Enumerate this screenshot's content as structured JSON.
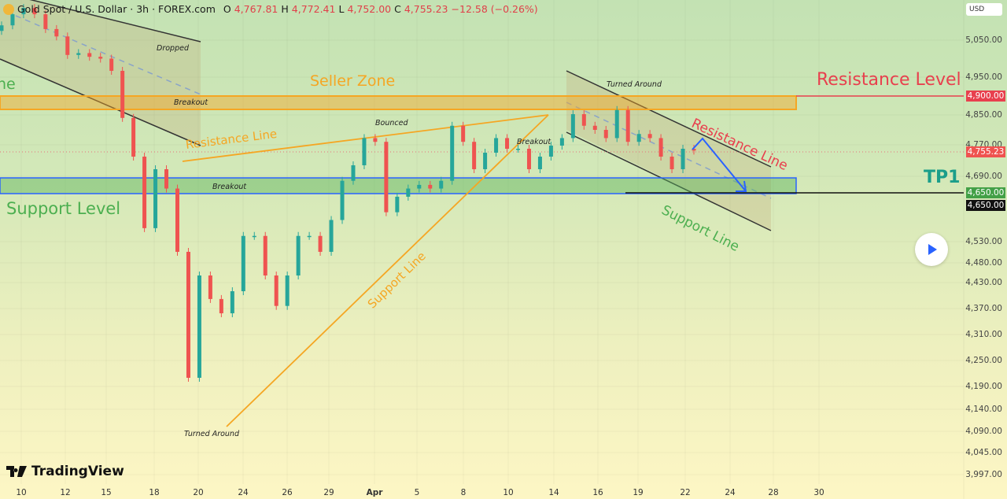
{
  "header": {
    "symbol": "Gold Spot / U.S. Dollar · 3h · FOREX.com",
    "o_label": "O",
    "o": "4,767.81",
    "h_label": "H",
    "h": "4,772.41",
    "l_label": "L",
    "l": "4,752.00",
    "c_label": "C",
    "c": "4,755.23",
    "change": "−12.58 (−0.26%)"
  },
  "currency": "USD",
  "branding": "TradingView",
  "colors": {
    "up": "#26a69a",
    "down": "#ef5350",
    "seller_zone": "#f5a623",
    "support_zone": "#2962ff",
    "resistance": "#e8404e",
    "support_text": "#4caf50",
    "tp": "#1b9e8a"
  },
  "annotations": {
    "seller_zone": "Seller Zone",
    "resistance_level": "Resistance Level",
    "support_level": "Support Level",
    "tp1": "TP1",
    "resistance_line_left": "Resistance Line",
    "support_line_left": "Support Line",
    "resistance_line_right": "Resistance Line",
    "support_line_right": "Support Line",
    "cut_label": "ne",
    "notes": [
      "Dropped",
      "Breakout",
      "Breakout",
      "Bounced",
      "Breakout",
      "Turned Around",
      "Turned Around"
    ]
  },
  "chart_data": {
    "type": "candlestick",
    "title": "Gold Spot / U.S. Dollar · 3h · FOREX.com",
    "closes": [
      5090,
      5120,
      5137,
      5120,
      5080,
      5060,
      5010,
      5015,
      5005,
      5000,
      4967,
      4842,
      4740,
      4563,
      4708,
      4660,
      4506,
      4210,
      4448,
      4392,
      4359,
      4410,
      4544,
      4544,
      4448,
      4376,
      4448,
      4544,
      4544,
      4506,
      4583,
      4679,
      4718,
      4788,
      4778,
      4602,
      4640,
      4660,
      4669,
      4660,
      4679,
      4821,
      4778,
      4708,
      4750,
      4788,
      4760,
      4760,
      4708,
      4740,
      4768,
      4788,
      4852,
      4821,
      4810,
      4788,
      4863,
      4778,
      4799,
      4788,
      4740,
      4708,
      4760,
      4755.23
    ],
    "x_ticks": [
      "10",
      "12",
      "15",
      "18",
      "20",
      "24",
      "26",
      "29",
      "Apr",
      "5",
      "8",
      "10",
      "14",
      "16",
      "19",
      "22",
      "24",
      "28",
      "30"
    ],
    "y_ticks": [
      "5,050.00",
      "4,950.00",
      "4,850.00",
      "4,770.00",
      "4,690.00",
      "4,530.00",
      "4,480.00",
      "4,430.00",
      "4,370.00",
      "4,310.00",
      "4,250.00",
      "4,190.00",
      "4,140.00",
      "4,090.00",
      "4,045.00",
      "3,997.00"
    ],
    "levels": {
      "resistance": {
        "value": 4900,
        "label": "4,900.00"
      },
      "last_price": {
        "value": 4755.23,
        "label": "4,755.23"
      },
      "tp1": {
        "value": 4650,
        "label": "4,650.00"
      },
      "tp1_line": {
        "value": 4650,
        "label": "4,650.00"
      }
    },
    "zones": {
      "seller": [
        4865,
        4900
      ],
      "support": [
        4650,
        4690
      ]
    }
  }
}
